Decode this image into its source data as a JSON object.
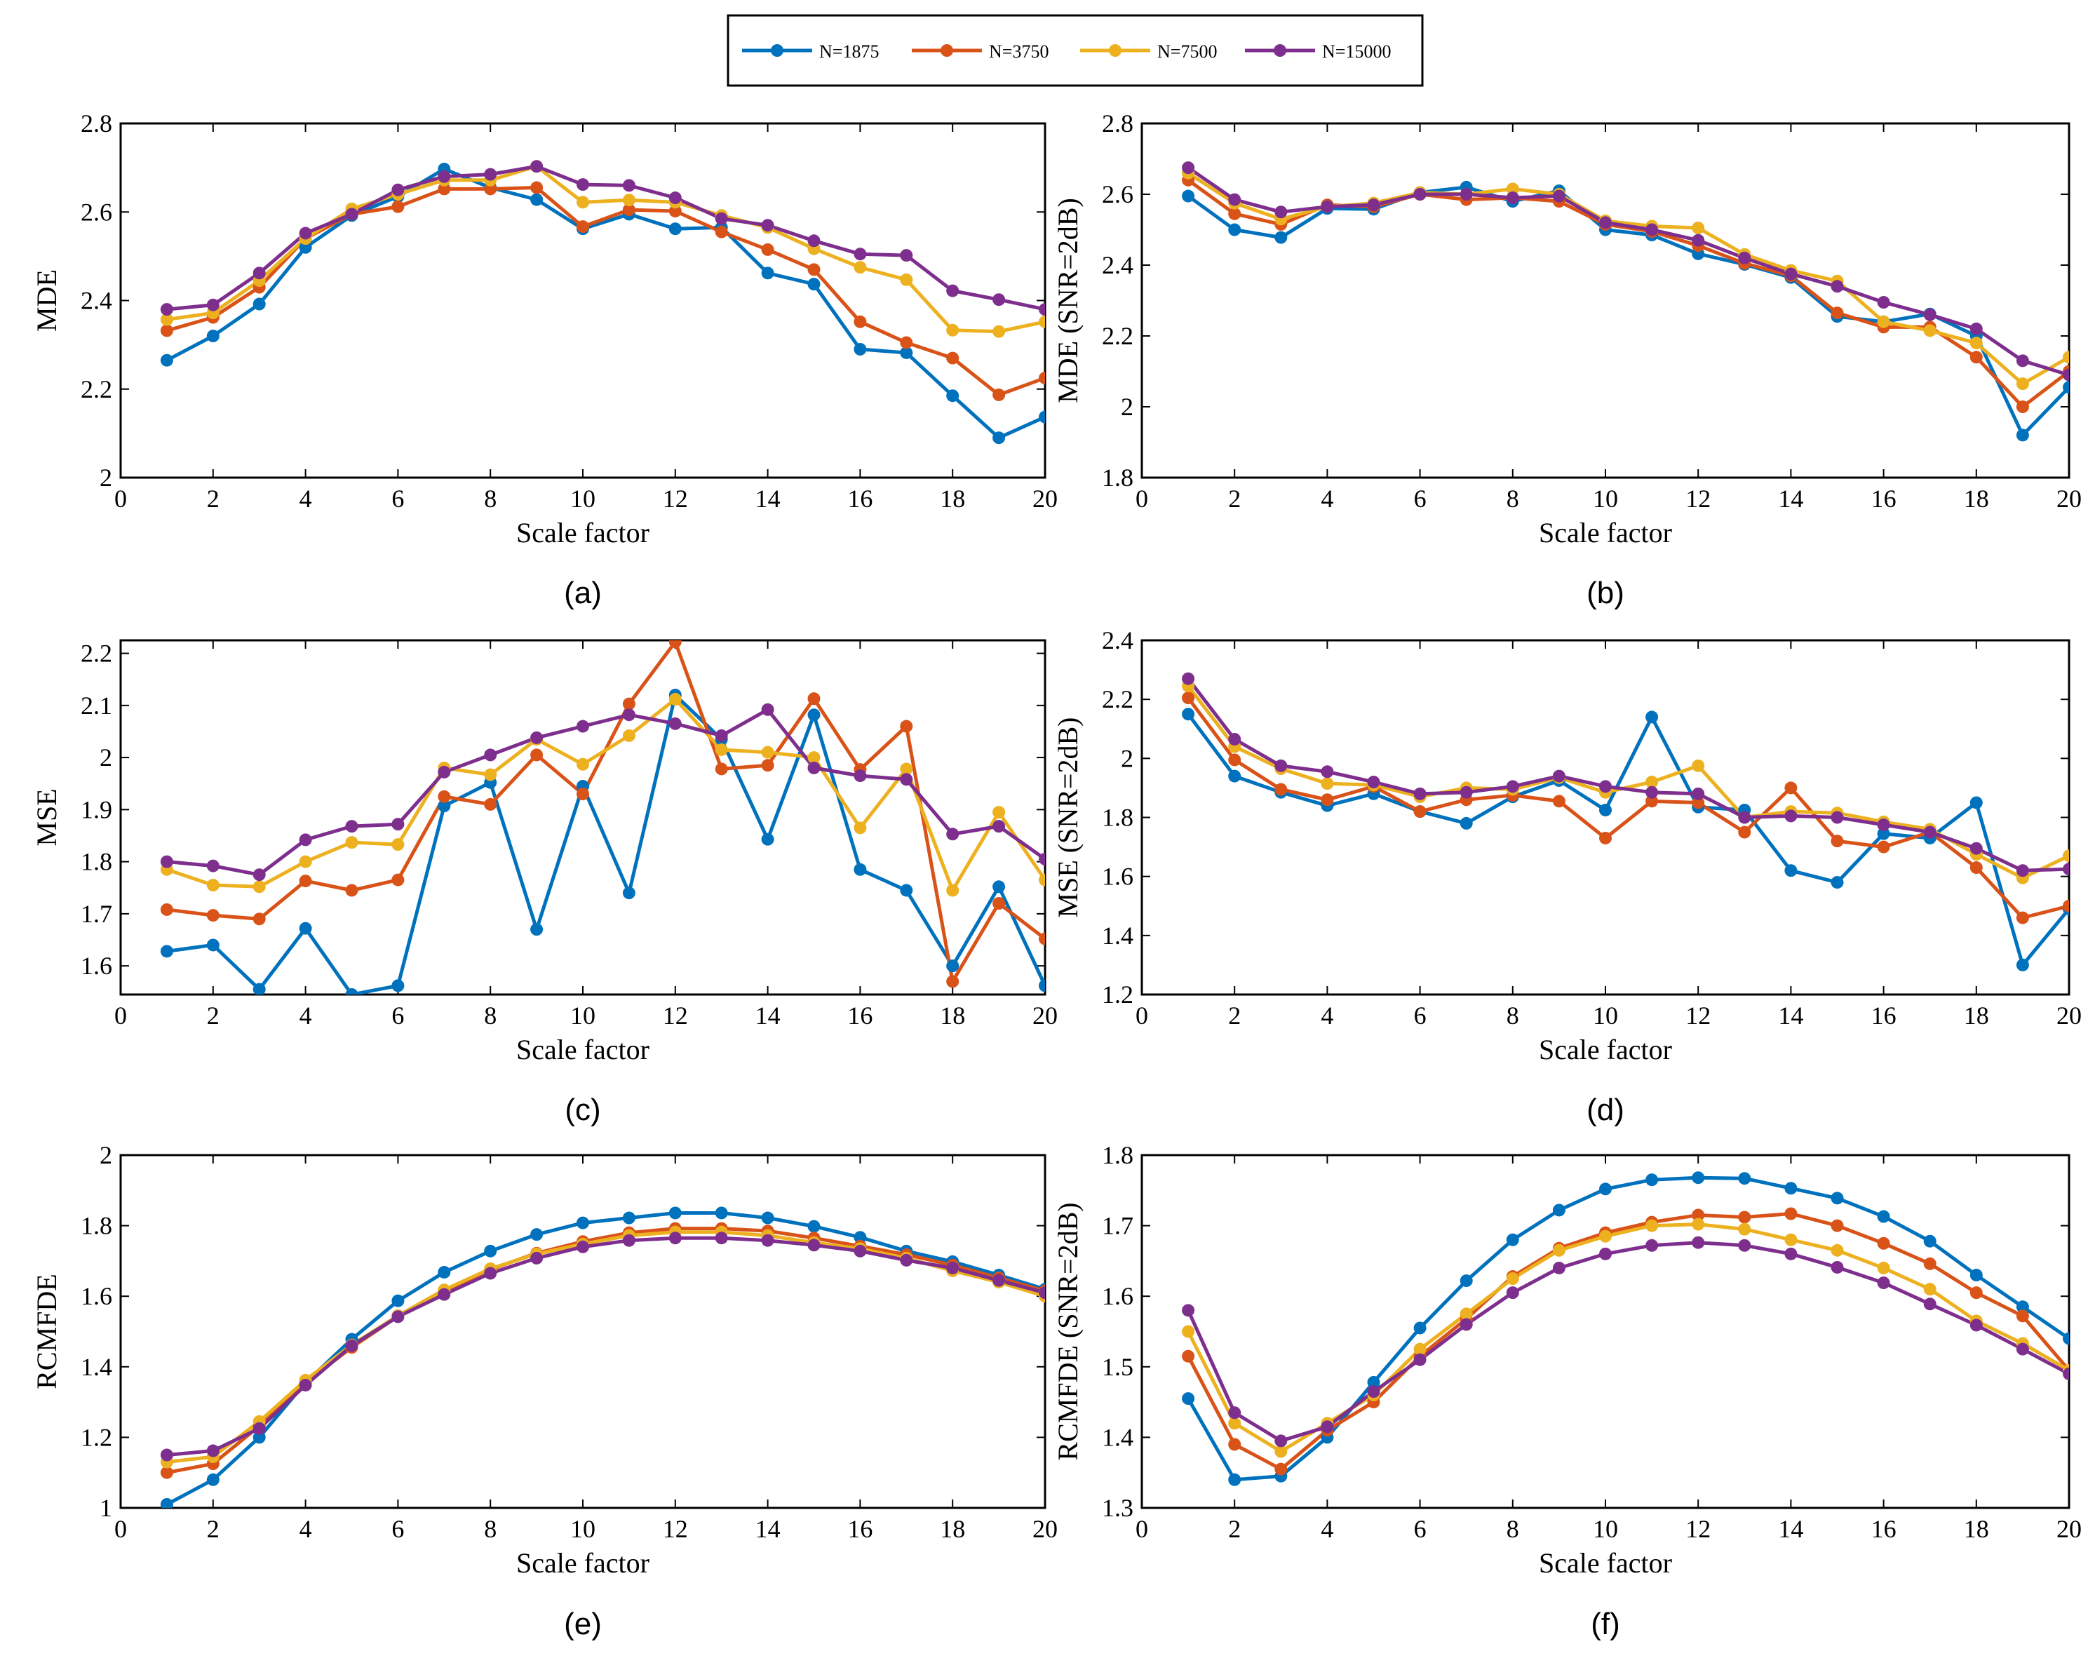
{
  "colors": [
    "#0072BD",
    "#D95319",
    "#EDB120",
    "#7E2F8E"
  ],
  "legend": [
    "N=1875",
    "N=3750",
    "N=7500",
    "N=15000"
  ],
  "chart_data": [
    {
      "type": "line",
      "panel_label": "(a)",
      "xlabel": "Scale factor",
      "ylabel": "MDE",
      "xlim": [
        0,
        20
      ],
      "ylim": [
        2,
        2.8
      ],
      "xticks": [
        "0",
        "2",
        "4",
        "6",
        "8",
        "10",
        "12",
        "14",
        "16",
        "18",
        "20"
      ],
      "yticks": [
        "2",
        "2.2",
        "2.4",
        "2.6",
        "2.8"
      ],
      "series": [
        {
          "name": "N=1875",
          "values": [
            2.265,
            2.32,
            2.392,
            2.52,
            2.592,
            2.635,
            2.697,
            2.655,
            2.628,
            2.562,
            2.595,
            2.562,
            2.565,
            2.462,
            2.437,
            2.29,
            2.282,
            2.185,
            2.09,
            2.137
          ]
        },
        {
          "name": "N=3750",
          "values": [
            2.332,
            2.362,
            2.43,
            2.54,
            2.595,
            2.612,
            2.652,
            2.652,
            2.655,
            2.567,
            2.605,
            2.602,
            2.555,
            2.515,
            2.47,
            2.352,
            2.305,
            2.27,
            2.187,
            2.225
          ]
        },
        {
          "name": "N=7500",
          "values": [
            2.357,
            2.372,
            2.445,
            2.54,
            2.607,
            2.64,
            2.672,
            2.672,
            2.703,
            2.622,
            2.627,
            2.622,
            2.592,
            2.565,
            2.517,
            2.475,
            2.447,
            2.333,
            2.33,
            2.352
          ]
        },
        {
          "name": "N=15000",
          "values": [
            2.38,
            2.39,
            2.462,
            2.552,
            2.595,
            2.65,
            2.68,
            2.685,
            2.703,
            2.662,
            2.66,
            2.632,
            2.585,
            2.57,
            2.535,
            2.505,
            2.502,
            2.422,
            2.402,
            2.38
          ]
        }
      ]
    },
    {
      "type": "line",
      "panel_label": "(b)",
      "xlabel": "Scale factor",
      "ylabel": "MDE (SNR=2dB)",
      "xlim": [
        0,
        20
      ],
      "ylim": [
        1.8,
        2.8
      ],
      "xticks": [
        "0",
        "2",
        "4",
        "6",
        "8",
        "10",
        "12",
        "14",
        "16",
        "18",
        "20"
      ],
      "yticks": [
        "1.8",
        "2",
        "2.2",
        "2.4",
        "2.6",
        "2.8"
      ],
      "series": [
        {
          "name": "N=1875",
          "values": [
            2.595,
            2.5,
            2.478,
            2.56,
            2.558,
            2.605,
            2.62,
            2.58,
            2.61,
            2.5,
            2.485,
            2.432,
            2.402,
            2.365,
            2.255,
            2.24,
            2.262,
            2.2,
            1.92,
            2.055
          ]
        },
        {
          "name": "N=3750",
          "values": [
            2.64,
            2.545,
            2.515,
            2.57,
            2.565,
            2.6,
            2.585,
            2.59,
            2.58,
            2.515,
            2.495,
            2.455,
            2.405,
            2.37,
            2.265,
            2.225,
            2.225,
            2.14,
            2.0,
            2.1
          ]
        },
        {
          "name": "N=7500",
          "values": [
            2.66,
            2.575,
            2.53,
            2.565,
            2.575,
            2.605,
            2.6,
            2.615,
            2.6,
            2.525,
            2.51,
            2.505,
            2.43,
            2.385,
            2.355,
            2.24,
            2.215,
            2.18,
            2.065,
            2.14
          ]
        },
        {
          "name": "N=15000",
          "values": [
            2.675,
            2.585,
            2.55,
            2.565,
            2.57,
            2.6,
            2.6,
            2.59,
            2.595,
            2.52,
            2.5,
            2.47,
            2.42,
            2.375,
            2.34,
            2.295,
            2.26,
            2.22,
            2.13,
            2.09
          ]
        }
      ]
    },
    {
      "type": "line",
      "panel_label": "(c)",
      "xlabel": "Scale factor",
      "ylabel": "MSE",
      "xlim": [
        0,
        20
      ],
      "ylim": [
        1.545,
        2.225
      ],
      "xticks": [
        "0",
        "2",
        "4",
        "6",
        "8",
        "10",
        "12",
        "14",
        "16",
        "18",
        "20"
      ],
      "yticks": [
        "1.6",
        "1.7",
        "1.8",
        "1.9",
        "2",
        "2.1",
        "2.2"
      ],
      "series": [
        {
          "name": "N=1875",
          "values": [
            1.628,
            1.64,
            1.555,
            1.672,
            1.545,
            1.562,
            1.907,
            1.952,
            1.67,
            1.945,
            1.74,
            2.12,
            2.035,
            1.843,
            2.082,
            1.785,
            1.745,
            1.6,
            1.752,
            1.562
          ]
        },
        {
          "name": "N=3750",
          "values": [
            1.708,
            1.697,
            1.69,
            1.763,
            1.745,
            1.765,
            1.925,
            1.91,
            2.005,
            1.93,
            2.103,
            2.222,
            1.978,
            1.985,
            2.113,
            1.977,
            2.06,
            1.57,
            1.72,
            1.652
          ]
        },
        {
          "name": "N=7500",
          "values": [
            1.785,
            1.755,
            1.752,
            1.8,
            1.837,
            1.833,
            1.98,
            1.967,
            2.035,
            1.987,
            2.042,
            2.112,
            2.015,
            2.01,
            2.0,
            1.865,
            1.978,
            1.745,
            1.895,
            1.765
          ]
        },
        {
          "name": "N=15000",
          "values": [
            1.8,
            1.792,
            1.775,
            1.842,
            1.868,
            1.872,
            1.972,
            2.005,
            2.038,
            2.06,
            2.082,
            2.065,
            2.042,
            2.092,
            1.98,
            1.965,
            1.958,
            1.853,
            1.868,
            1.805
          ]
        }
      ]
    },
    {
      "type": "line",
      "panel_label": "(d)",
      "xlabel": "Scale factor",
      "ylabel": "MSE (SNR=2dB)",
      "xlim": [
        0,
        20
      ],
      "ylim": [
        1.2,
        2.4
      ],
      "xticks": [
        "0",
        "2",
        "4",
        "6",
        "8",
        "10",
        "12",
        "14",
        "16",
        "18",
        "20"
      ],
      "yticks": [
        "1.2",
        "1.4",
        "1.6",
        "1.8",
        "2",
        "2.2",
        "2.4"
      ],
      "series": [
        {
          "name": "N=1875",
          "values": [
            2.15,
            1.94,
            1.885,
            1.84,
            1.88,
            1.82,
            1.78,
            1.87,
            1.925,
            1.825,
            2.14,
            1.835,
            1.825,
            1.62,
            1.58,
            1.745,
            1.73,
            1.85,
            1.3,
            1.49
          ]
        },
        {
          "name": "N=3750",
          "values": [
            2.205,
            1.995,
            1.895,
            1.86,
            1.905,
            1.82,
            1.86,
            1.875,
            1.855,
            1.73,
            1.855,
            1.85,
            1.75,
            1.9,
            1.72,
            1.7,
            1.75,
            1.63,
            1.46,
            1.5
          ]
        },
        {
          "name": "N=7500",
          "values": [
            2.245,
            2.04,
            1.965,
            1.915,
            1.91,
            1.87,
            1.9,
            1.895,
            1.935,
            1.885,
            1.92,
            1.975,
            1.8,
            1.82,
            1.815,
            1.785,
            1.76,
            1.675,
            1.595,
            1.67
          ]
        },
        {
          "name": "N=15000",
          "values": [
            2.27,
            2.065,
            1.975,
            1.955,
            1.92,
            1.88,
            1.885,
            1.905,
            1.94,
            1.905,
            1.885,
            1.88,
            1.8,
            1.805,
            1.8,
            1.775,
            1.75,
            1.695,
            1.62,
            1.625
          ]
        }
      ]
    },
    {
      "type": "line",
      "panel_label": "(e)",
      "xlabel": "Scale factor",
      "ylabel": "RCMFDE",
      "xlim": [
        0,
        20
      ],
      "ylim": [
        1,
        2
      ],
      "xticks": [
        "0",
        "2",
        "4",
        "6",
        "8",
        "10",
        "12",
        "14",
        "16",
        "18",
        "20"
      ],
      "yticks": [
        "1",
        "1.2",
        "1.4",
        "1.6",
        "1.8",
        "2"
      ],
      "series": [
        {
          "name": "N=1875",
          "values": [
            1.01,
            1.08,
            1.2,
            1.355,
            1.478,
            1.587,
            1.668,
            1.728,
            1.775,
            1.808,
            1.822,
            1.836,
            1.836,
            1.822,
            1.798,
            1.767,
            1.728,
            1.698,
            1.66,
            1.62
          ]
        },
        {
          "name": "N=3750",
          "values": [
            1.1,
            1.125,
            1.232,
            1.355,
            1.455,
            1.543,
            1.615,
            1.676,
            1.722,
            1.755,
            1.78,
            1.792,
            1.792,
            1.785,
            1.765,
            1.742,
            1.718,
            1.688,
            1.652,
            1.615
          ]
        },
        {
          "name": "N=7500",
          "values": [
            1.13,
            1.145,
            1.245,
            1.362,
            1.462,
            1.545,
            1.618,
            1.678,
            1.72,
            1.748,
            1.772,
            1.782,
            1.782,
            1.772,
            1.752,
            1.735,
            1.708,
            1.672,
            1.64,
            1.6
          ]
        },
        {
          "name": "N=15000",
          "values": [
            1.15,
            1.162,
            1.225,
            1.348,
            1.46,
            1.542,
            1.605,
            1.665,
            1.708,
            1.74,
            1.758,
            1.765,
            1.765,
            1.758,
            1.745,
            1.728,
            1.702,
            1.68,
            1.645,
            1.61
          ]
        }
      ]
    },
    {
      "type": "line",
      "panel_label": "(f)",
      "xlabel": "Scale factor",
      "ylabel": "RCMFDE (SNR=2dB)",
      "xlim": [
        0,
        20
      ],
      "ylim": [
        1.3,
        1.8
      ],
      "xticks": [
        "0",
        "2",
        "4",
        "6",
        "8",
        "10",
        "12",
        "14",
        "16",
        "18",
        "20"
      ],
      "yticks": [
        "1.3",
        "1.4",
        "1.5",
        "1.6",
        "1.7",
        "1.8"
      ],
      "series": [
        {
          "name": "N=1875",
          "values": [
            1.455,
            1.34,
            1.345,
            1.4,
            1.478,
            1.555,
            1.622,
            1.68,
            1.722,
            1.752,
            1.765,
            1.768,
            1.767,
            1.753,
            1.739,
            1.713,
            1.678,
            1.63,
            1.585,
            1.54
          ]
        },
        {
          "name": "N=3750",
          "values": [
            1.515,
            1.39,
            1.355,
            1.41,
            1.45,
            1.515,
            1.568,
            1.628,
            1.668,
            1.69,
            1.705,
            1.715,
            1.712,
            1.717,
            1.7,
            1.675,
            1.646,
            1.605,
            1.572,
            1.495
          ]
        },
        {
          "name": "N=7500",
          "values": [
            1.55,
            1.42,
            1.38,
            1.42,
            1.46,
            1.525,
            1.575,
            1.625,
            1.665,
            1.685,
            1.7,
            1.702,
            1.695,
            1.68,
            1.665,
            1.64,
            1.61,
            1.565,
            1.533,
            1.495
          ]
        },
        {
          "name": "N=15000",
          "values": [
            1.58,
            1.435,
            1.395,
            1.415,
            1.465,
            1.51,
            1.56,
            1.605,
            1.64,
            1.66,
            1.672,
            1.676,
            1.672,
            1.66,
            1.641,
            1.619,
            1.589,
            1.559,
            1.525,
            1.49
          ]
        }
      ]
    }
  ]
}
